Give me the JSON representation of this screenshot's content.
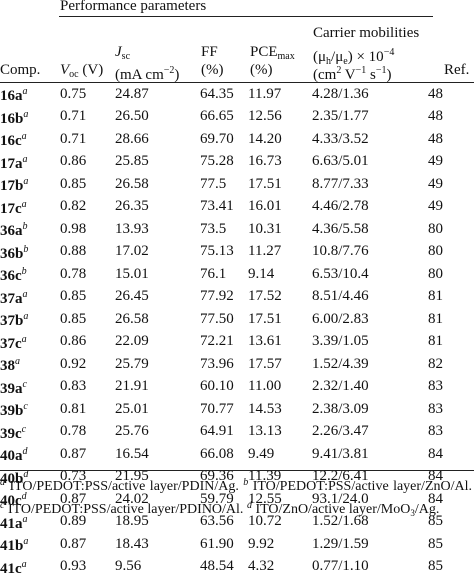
{
  "group_header": "Performance parameters",
  "headers": {
    "comp": "Comp.",
    "voc_symbol": "V",
    "voc_sub": "oc",
    "voc_unit": "(V)",
    "jsc_symbol": "J",
    "jsc_sub": "sc",
    "jsc_unit_pre": "(mA cm",
    "jsc_unit_exp": "−2",
    "jsc_unit_post": ")",
    "ff": "FF",
    "ff_unit": "(%)",
    "pce": "PCE",
    "pce_sub": "max",
    "pce_unit": "(%)",
    "mob_line1": "Carrier mobilities",
    "mob_line2_pre": "(μ",
    "mob_line2_h": "h",
    "mob_line2_mid": "/μ",
    "mob_line2_e": "e",
    "mob_line2_post": ") × 10",
    "mob_line2_exp": "−4",
    "mob_line3_pre": "(cm",
    "mob_line3_e1": "2",
    "mob_line3_mid": " V",
    "mob_line3_e2": "−1",
    "mob_line3_mid2": " s",
    "mob_line3_e3": "−1",
    "mob_line3_post": ")",
    "ref": "Ref."
  },
  "rows": [
    {
      "comp": "16a",
      "note": "a",
      "voc": "0.75",
      "jsc": "24.87",
      "ff": "64.35",
      "pce": "11.97",
      "mob": "4.28/1.36",
      "ref": "48"
    },
    {
      "comp": "16b",
      "note": "a",
      "voc": "0.71",
      "jsc": "26.50",
      "ff": "66.65",
      "pce": "12.56",
      "mob": "2.35/1.77",
      "ref": "48"
    },
    {
      "comp": "16c",
      "note": "a",
      "voc": "0.71",
      "jsc": "28.66",
      "ff": "69.70",
      "pce": "14.20",
      "mob": "4.33/3.52",
      "ref": "48"
    },
    {
      "comp": "17a",
      "note": "a",
      "voc": "0.86",
      "jsc": "25.85",
      "ff": "75.28",
      "pce": "16.73",
      "mob": "6.63/5.01",
      "ref": "49"
    },
    {
      "comp": "17b",
      "note": "a",
      "voc": "0.85",
      "jsc": "26.58",
      "ff": "77.5",
      "pce": "17.51",
      "mob": "8.77/7.33",
      "ref": "49"
    },
    {
      "comp": "17c",
      "note": "a",
      "voc": "0.82",
      "jsc": "26.35",
      "ff": "73.41",
      "pce": "16.01",
      "mob": "4.46/2.78",
      "ref": "49"
    },
    {
      "comp": "36a",
      "note": "b",
      "voc": "0.98",
      "jsc": "13.93",
      "ff": "73.5",
      "pce": "10.31",
      "mob": "4.36/5.58",
      "ref": "80"
    },
    {
      "comp": "36b",
      "note": "b",
      "voc": "0.88",
      "jsc": "17.02",
      "ff": "75.13",
      "pce": "11.27",
      "mob": "10.8/7.76",
      "ref": "80"
    },
    {
      "comp": "36c",
      "note": "b",
      "voc": "0.78",
      "jsc": "15.01",
      "ff": "76.1",
      "pce": "9.14",
      "mob": "6.53/10.4",
      "ref": "80"
    },
    {
      "comp": "37a",
      "note": "a",
      "voc": "0.85",
      "jsc": "26.45",
      "ff": "77.92",
      "pce": "17.52",
      "mob": "8.51/4.46",
      "ref": "81"
    },
    {
      "comp": "37b",
      "note": "a",
      "voc": "0.85",
      "jsc": "26.58",
      "ff": "77.50",
      "pce": "17.51",
      "mob": "6.00/2.83",
      "ref": "81"
    },
    {
      "comp": "37c",
      "note": "a",
      "voc": "0.86",
      "jsc": "22.09",
      "ff": "72.21",
      "pce": "13.61",
      "mob": "3.39/1.05",
      "ref": "81"
    },
    {
      "comp": "38",
      "note": "a",
      "voc": "0.92",
      "jsc": "25.79",
      "ff": "73.96",
      "pce": "17.57",
      "mob": "1.52/4.39",
      "ref": "82"
    },
    {
      "comp": "39a",
      "note": "c",
      "voc": "0.83",
      "jsc": "21.91",
      "ff": "60.10",
      "pce": "11.00",
      "mob": "2.32/1.40",
      "ref": "83"
    },
    {
      "comp": "39b",
      "note": "c",
      "voc": "0.81",
      "jsc": "25.01",
      "ff": "70.77",
      "pce": "14.53",
      "mob": "2.38/3.09",
      "ref": "83"
    },
    {
      "comp": "39c",
      "note": "c",
      "voc": "0.78",
      "jsc": "25.76",
      "ff": "64.91",
      "pce": "13.13",
      "mob": "2.26/3.47",
      "ref": "83"
    },
    {
      "comp": "40a",
      "note": "d",
      "voc": "0.87",
      "jsc": "16.54",
      "ff": "66.08",
      "pce": "9.49",
      "mob": "9.41/3.81",
      "ref": "84"
    },
    {
      "comp": "40b",
      "note": "d",
      "voc": "0.73",
      "jsc": "21.95",
      "ff": "69.36",
      "pce": "11.39",
      "mob": "12.2/6.41",
      "ref": "84"
    },
    {
      "comp": "40c",
      "note": "d",
      "voc": "0.87",
      "jsc": "24.02",
      "ff": "59.79",
      "pce": "12.55",
      "mob": "93.1/24.0",
      "ref": "84"
    },
    {
      "comp": "41a",
      "note": "a",
      "voc": "0.89",
      "jsc": "18.95",
      "ff": "63.56",
      "pce": "10.72",
      "mob": "1.52/1.68",
      "ref": "85"
    },
    {
      "comp": "41b",
      "note": "a",
      "voc": "0.87",
      "jsc": "18.43",
      "ff": "61.90",
      "pce": "9.92",
      "mob": "1.29/1.59",
      "ref": "85"
    },
    {
      "comp": "41c",
      "note": "a",
      "voc": "0.93",
      "jsc": "9.56",
      "ff": "48.54",
      "pce": "4.32",
      "mob": "0.77/1.10",
      "ref": "85"
    }
  ],
  "footnotes": {
    "a_mark": "a",
    "a_text": "ITO/PEDOT:PSS/active layer/PDIN/Ag.",
    "b_mark": "b",
    "b_text": "ITO/PEDOT:PSS/active layer/ZnO/Al.",
    "c_mark": "c",
    "c_text": "ITO/PEDOT:PSS/active layer/PDINO/Al.",
    "d_mark": "d",
    "d_text_pre": "ITO/ZnO/active layer/MoO",
    "d_text_sub": "3",
    "d_text_post": "/Ag."
  }
}
